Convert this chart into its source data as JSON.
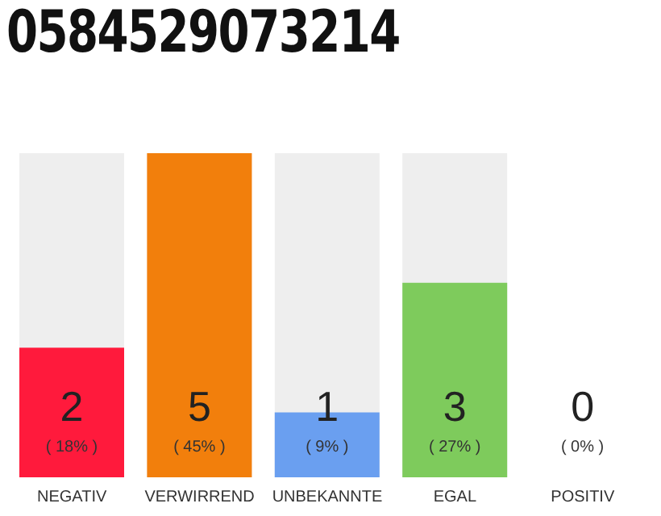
{
  "chart_data": {
    "type": "bar",
    "title": "0584529073214",
    "categories": [
      "NEGATIV",
      "VERWIRREND",
      "UNBEKANNTE",
      "EGAL",
      "POSITIV"
    ],
    "values": [
      2,
      5,
      1,
      3,
      0
    ],
    "colors": [
      "#ff1a3c",
      "#f27f0c",
      "#6a9ff0",
      "#7ecb5c",
      "#cccccc"
    ],
    "ylim": [
      0,
      5
    ],
    "tick_labels": "x",
    "data_labels": true,
    "annotations": [
      "( 18% )",
      "( 45% )",
      "( 9% )",
      "( 27% )",
      "( 0% )"
    ]
  }
}
